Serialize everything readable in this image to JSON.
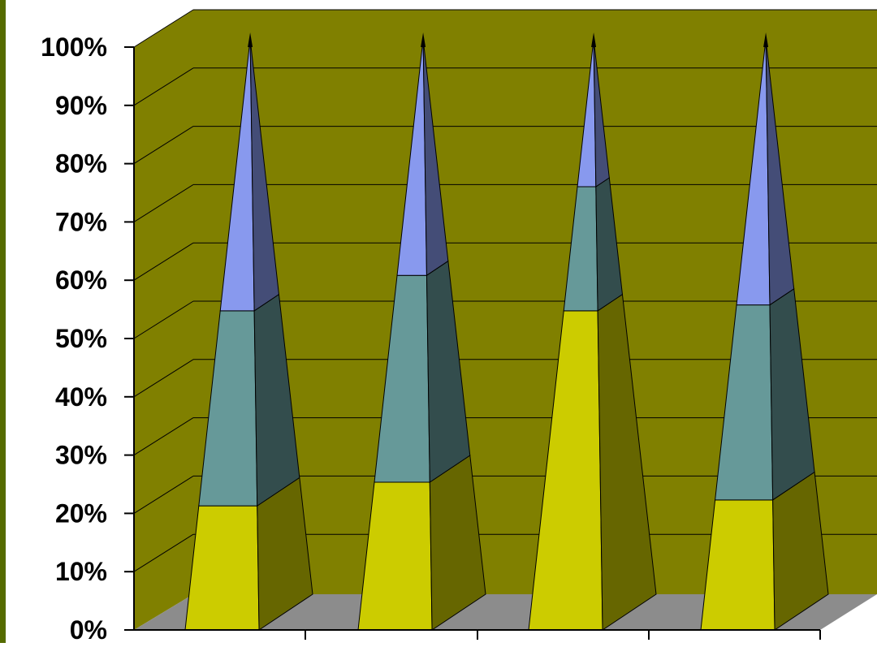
{
  "chart_data": {
    "type": "bar",
    "subtype": "3d-pyramid-100-percent-stacked",
    "title": "",
    "xlabel": "",
    "ylabel": "",
    "categories": [
      "",
      "",
      "",
      ""
    ],
    "series": [
      {
        "values": [
          21,
          25,
          54,
          22
        ],
        "color": "#cccc00"
      },
      {
        "values": [
          33,
          35,
          21,
          33
        ],
        "color": "#669999"
      },
      {
        "values": [
          46,
          40,
          25,
          45
        ],
        "color": "#8899ee"
      }
    ],
    "ylim": [
      0,
      100
    ],
    "yticks": [
      "0%",
      "10%",
      "20%",
      "30%",
      "40%",
      "50%",
      "60%",
      "70%",
      "80%",
      "90%",
      "100%"
    ],
    "grid": true,
    "legend": "none",
    "colors": {
      "wall": "#808000",
      "floor": "#8c8c8c",
      "frame_left": "#556b00",
      "axis_text": "#000000"
    }
  }
}
